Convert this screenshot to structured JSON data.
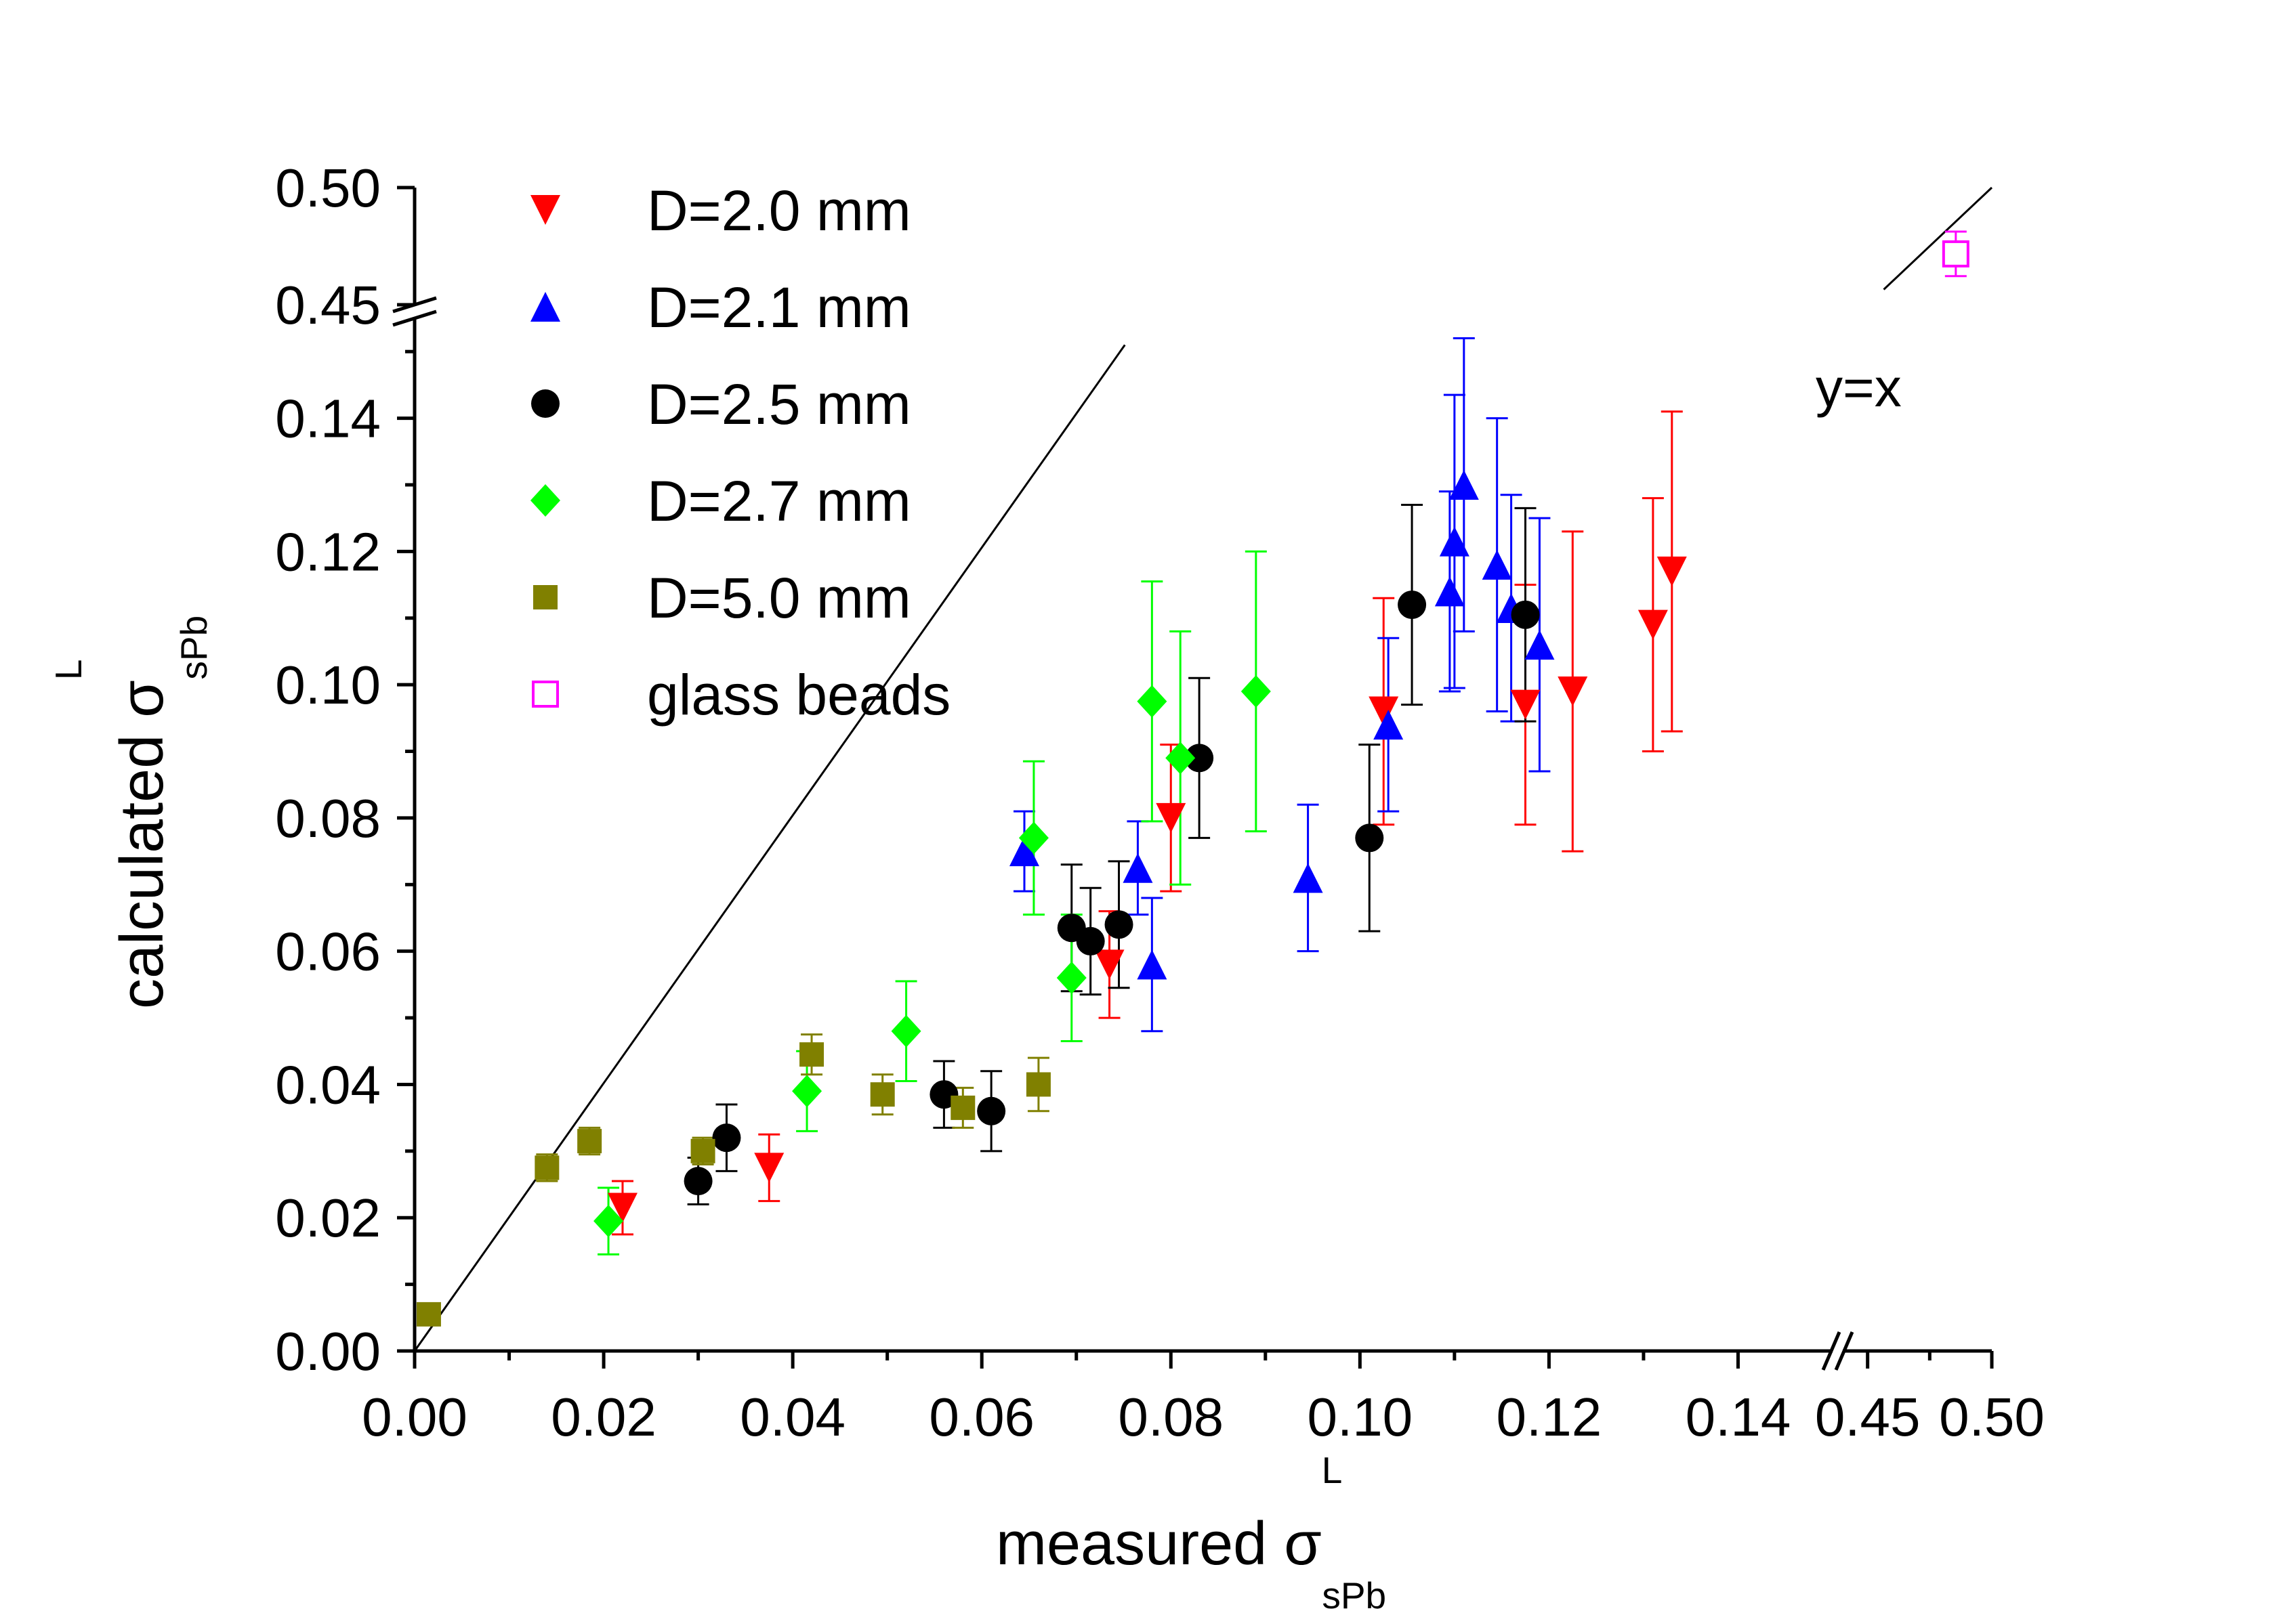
{
  "chart_data": {
    "type": "scatter",
    "title": "",
    "xlabel": "measured σ",
    "xlabel_sup": "L",
    "xlabel_sub": "sPb",
    "ylabel": "calculated σ",
    "ylabel_sup": "L",
    "ylabel_sub": "sPb",
    "x_segments": [
      {
        "range": [
          0.0,
          0.15
        ],
        "ticks": [
          "0.00",
          "0.02",
          "0.04",
          "0.06",
          "0.08",
          "0.10",
          "0.12",
          "0.14"
        ]
      },
      {
        "range": [
          0.44,
          0.5
        ],
        "ticks": [
          "0.45",
          "0.50"
        ]
      }
    ],
    "y_segments": [
      {
        "range": [
          0.0,
          0.155
        ],
        "ticks": [
          "0.00",
          "0.02",
          "0.04",
          "0.06",
          "0.08",
          "0.10",
          "0.12",
          "0.14"
        ]
      },
      {
        "range": [
          0.45,
          0.5
        ],
        "ticks": [
          "0.45",
          "0.50"
        ]
      }
    ],
    "grid": false,
    "legend_position": "top-left",
    "reference_line": {
      "label": "y=x",
      "color": "#000000"
    },
    "series": [
      {
        "name": "D=2.0 mm",
        "marker": "triangle-down",
        "color": "#ff0000",
        "filled": true,
        "points": [
          {
            "x": 0.022,
            "y": 0.0215,
            "err": 0.004
          },
          {
            "x": 0.0375,
            "y": 0.0275,
            "err": 0.005
          },
          {
            "x": 0.0735,
            "y": 0.058,
            "err": 0.008
          },
          {
            "x": 0.08,
            "y": 0.08,
            "err": 0.011
          },
          {
            "x": 0.1025,
            "y": 0.096,
            "err": 0.017
          },
          {
            "x": 0.1175,
            "y": 0.097,
            "err": 0.018
          },
          {
            "x": 0.1225,
            "y": 0.099,
            "err": 0.024
          },
          {
            "x": 0.131,
            "y": 0.109,
            "err": 0.019
          },
          {
            "x": 0.133,
            "y": 0.117,
            "err": 0.024
          }
        ]
      },
      {
        "name": "D=2.1 mm",
        "marker": "triangle-up",
        "color": "#0000ff",
        "filled": true,
        "points": [
          {
            "x": 0.0645,
            "y": 0.075,
            "err": 0.006
          },
          {
            "x": 0.0765,
            "y": 0.0725,
            "err": 0.007
          },
          {
            "x": 0.078,
            "y": 0.058,
            "err": 0.01
          },
          {
            "x": 0.0945,
            "y": 0.071,
            "err": 0.011
          },
          {
            "x": 0.103,
            "y": 0.094,
            "err": 0.013
          },
          {
            "x": 0.1095,
            "y": 0.114,
            "err": 0.015
          },
          {
            "x": 0.11,
            "y": 0.1215,
            "err": 0.022
          },
          {
            "x": 0.111,
            "y": 0.13,
            "err": 0.022
          },
          {
            "x": 0.1145,
            "y": 0.118,
            "err": 0.022
          },
          {
            "x": 0.116,
            "y": 0.1115,
            "err": 0.017
          },
          {
            "x": 0.119,
            "y": 0.106,
            "err": 0.019
          }
        ]
      },
      {
        "name": "D=2.5 mm",
        "marker": "circle",
        "color": "#000000",
        "filled": true,
        "points": [
          {
            "x": 0.03,
            "y": 0.0255,
            "err": 0.0035
          },
          {
            "x": 0.033,
            "y": 0.032,
            "err": 0.005
          },
          {
            "x": 0.056,
            "y": 0.0385,
            "err": 0.005
          },
          {
            "x": 0.061,
            "y": 0.036,
            "err": 0.006
          },
          {
            "x": 0.0695,
            "y": 0.0635,
            "err": 0.0095
          },
          {
            "x": 0.0715,
            "y": 0.0615,
            "err": 0.008
          },
          {
            "x": 0.0745,
            "y": 0.064,
            "err": 0.0095
          },
          {
            "x": 0.083,
            "y": 0.089,
            "err": 0.012
          },
          {
            "x": 0.101,
            "y": 0.077,
            "err": 0.014
          },
          {
            "x": 0.1055,
            "y": 0.112,
            "err": 0.015
          },
          {
            "x": 0.1175,
            "y": 0.1105,
            "err": 0.016
          }
        ]
      },
      {
        "name": "D=2.7 mm",
        "marker": "diamond",
        "color": "#00ff00",
        "filled": true,
        "points": [
          {
            "x": 0.0205,
            "y": 0.0195,
            "err": 0.005
          },
          {
            "x": 0.0415,
            "y": 0.039,
            "err": 0.006
          },
          {
            "x": 0.052,
            "y": 0.048,
            "err": 0.0075
          },
          {
            "x": 0.0655,
            "y": 0.077,
            "err": 0.0115
          },
          {
            "x": 0.0695,
            "y": 0.056,
            "err": 0.0095
          },
          {
            "x": 0.078,
            "y": 0.0975,
            "err": 0.018
          },
          {
            "x": 0.081,
            "y": 0.089,
            "err": 0.019
          },
          {
            "x": 0.089,
            "y": 0.099,
            "err": 0.021
          }
        ]
      },
      {
        "name": "D=5.0 mm",
        "marker": "square",
        "color": "#808000",
        "filled": true,
        "points": [
          {
            "x": 0.0015,
            "y": 0.0055,
            "err": 0
          },
          {
            "x": 0.014,
            "y": 0.0275,
            "err": 0.002
          },
          {
            "x": 0.0185,
            "y": 0.0315,
            "err": 0.002
          },
          {
            "x": 0.0305,
            "y": 0.03,
            "err": 0.002
          },
          {
            "x": 0.042,
            "y": 0.0445,
            "err": 0.003
          },
          {
            "x": 0.0495,
            "y": 0.0385,
            "err": 0.003
          },
          {
            "x": 0.058,
            "y": 0.0365,
            "err": 0.003
          },
          {
            "x": 0.066,
            "y": 0.04,
            "err": 0.004
          }
        ]
      },
      {
        "name": "glass beads",
        "marker": "square",
        "color": "#ff00ff",
        "filled": false,
        "points": [
          {
            "x": 0.4855,
            "y": 0.4717,
            "err": 0.0095
          }
        ]
      }
    ]
  }
}
